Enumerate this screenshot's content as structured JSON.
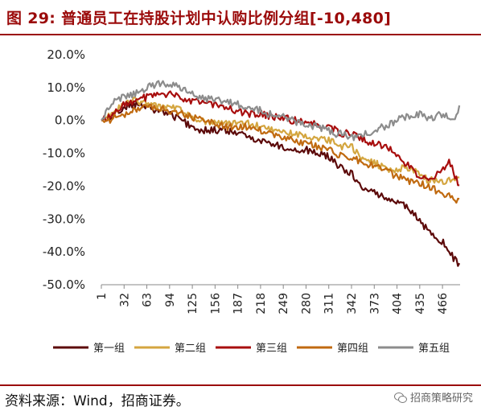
{
  "title": "图 29: 普通员工在持股计划中认购比例分组[-10,480]",
  "source": "资料来源：Wind，招商证券。",
  "watermark": "招商策略研究",
  "colors": {
    "accent": "#9b0a0a",
    "series": [
      "#5c0a0a",
      "#d4a640",
      "#a80e0e",
      "#c06a10",
      "#8c8c8c"
    ]
  },
  "chart_data": {
    "type": "line",
    "title": "",
    "xlabel": "",
    "ylabel": "",
    "x_ticks": [
      1,
      32,
      63,
      94,
      125,
      156,
      187,
      218,
      249,
      280,
      311,
      342,
      373,
      404,
      435,
      466
    ],
    "xlim": [
      1,
      490
    ],
    "ylim": [
      -50,
      20
    ],
    "y_ticks": [
      20,
      10,
      0,
      -10,
      -20,
      -30,
      -40,
      -50
    ],
    "y_tick_format": "percent_1dp",
    "grid": false,
    "legend_position": "bottom",
    "series": [
      {
        "name": "第一组",
        "x": [
          1,
          10,
          20,
          32,
          45,
          63,
          80,
          94,
          110,
          125,
          140,
          156,
          170,
          187,
          200,
          218,
          230,
          249,
          260,
          280,
          295,
          311,
          320,
          330,
          342,
          350,
          360,
          373,
          385,
          395,
          404,
          415,
          425,
          435,
          445,
          455,
          466,
          475,
          485,
          490
        ],
        "values": [
          0,
          0,
          2,
          4,
          5,
          4,
          3,
          2,
          0,
          -2,
          -3,
          -3,
          -3,
          -4,
          -5,
          -6,
          -7,
          -8,
          -9,
          -9,
          -10,
          -11,
          -13,
          -15,
          -16,
          -19,
          -21,
          -22,
          -23,
          -24,
          -25,
          -26,
          -28,
          -31,
          -33,
          -35,
          -37,
          -40,
          -43,
          -44
        ]
      },
      {
        "name": "第二组",
        "x": [
          1,
          10,
          20,
          32,
          45,
          63,
          80,
          94,
          110,
          125,
          140,
          156,
          170,
          187,
          200,
          218,
          230,
          249,
          260,
          280,
          295,
          311,
          320,
          330,
          342,
          350,
          360,
          373,
          385,
          395,
          404,
          415,
          425,
          435,
          445,
          455,
          466,
          475,
          485,
          490
        ],
        "values": [
          0,
          1,
          3,
          5,
          6,
          5,
          4,
          4,
          3,
          1,
          0,
          -1,
          -1,
          -1,
          -1,
          -2,
          -3,
          -3,
          -4,
          -5,
          -6,
          -6,
          -7,
          -8,
          -8,
          -10,
          -12,
          -13,
          -14,
          -15,
          -15,
          -14,
          -15,
          -16,
          -18,
          -18,
          -19,
          -18,
          -18,
          -17
        ]
      },
      {
        "name": "第三组",
        "x": [
          1,
          10,
          20,
          32,
          45,
          63,
          80,
          94,
          110,
          125,
          140,
          156,
          170,
          187,
          200,
          218,
          230,
          249,
          260,
          280,
          295,
          311,
          320,
          330,
          342,
          350,
          360,
          373,
          385,
          395,
          404,
          415,
          425,
          435,
          445,
          455,
          466,
          475,
          485,
          490
        ],
        "values": [
          0,
          1,
          3,
          5,
          6,
          7,
          8,
          8,
          7,
          6,
          5,
          5,
          4,
          3,
          2,
          2,
          1,
          1,
          0,
          0,
          -1,
          -2,
          -3,
          -4,
          -4,
          -5,
          -6,
          -7,
          -8,
          -9,
          -11,
          -13,
          -15,
          -17,
          -18,
          -17,
          -15,
          -12,
          -18,
          -20
        ]
      },
      {
        "name": "第四组",
        "x": [
          1,
          10,
          20,
          32,
          45,
          63,
          80,
          94,
          110,
          125,
          140,
          156,
          170,
          187,
          200,
          218,
          230,
          249,
          260,
          280,
          295,
          311,
          320,
          330,
          342,
          350,
          360,
          373,
          385,
          395,
          404,
          415,
          425,
          435,
          445,
          455,
          466,
          475,
          485,
          490
        ],
        "values": [
          0,
          0,
          1,
          2,
          3,
          4,
          4,
          3,
          2,
          1,
          0,
          -1,
          -2,
          -2,
          -2,
          -3,
          -4,
          -5,
          -6,
          -7,
          -8,
          -9,
          -10,
          -11,
          -11,
          -12,
          -13,
          -14,
          -15,
          -16,
          -17,
          -18,
          -19,
          -19,
          -20,
          -21,
          -22,
          -23,
          -24,
          -24
        ]
      },
      {
        "name": "第五组",
        "x": [
          1,
          10,
          20,
          32,
          45,
          63,
          80,
          94,
          110,
          125,
          140,
          156,
          170,
          187,
          200,
          218,
          230,
          249,
          260,
          280,
          295,
          311,
          320,
          330,
          342,
          350,
          360,
          373,
          385,
          395,
          404,
          415,
          425,
          435,
          445,
          455,
          466,
          475,
          485,
          490
        ],
        "values": [
          0,
          3,
          6,
          7,
          8,
          10,
          11,
          11,
          10,
          8,
          7,
          6,
          6,
          5,
          4,
          3,
          2,
          1,
          0,
          -1,
          -2,
          -3,
          -4,
          -4,
          -5,
          -5,
          -4,
          -3,
          -2,
          -1,
          0,
          1,
          1,
          2,
          1,
          1,
          2,
          1,
          1,
          5
        ]
      }
    ]
  }
}
